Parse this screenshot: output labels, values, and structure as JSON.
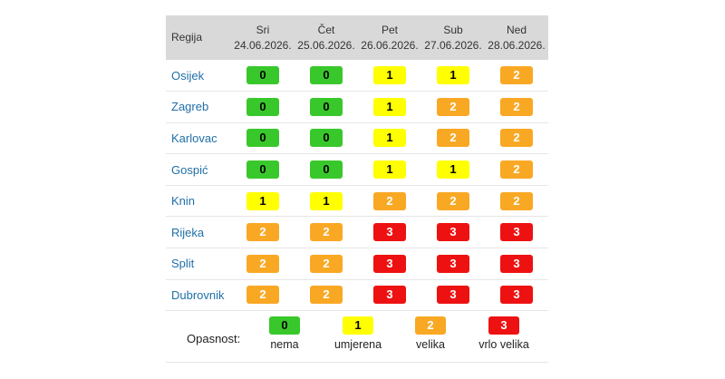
{
  "table": {
    "region_header": "Regija",
    "days": [
      {
        "name": "Sri",
        "date": "24.06.2026."
      },
      {
        "name": "Čet",
        "date": "25.06.2026."
      },
      {
        "name": "Pet",
        "date": "26.06.2026."
      },
      {
        "name": "Sub",
        "date": "27.06.2026."
      },
      {
        "name": "Ned",
        "date": "28.06.2026."
      }
    ],
    "rows": [
      {
        "region": "Osijek",
        "levels": [
          "0",
          "0",
          "1",
          "1",
          "2"
        ]
      },
      {
        "region": "Zagreb",
        "levels": [
          "0",
          "0",
          "1",
          "2",
          "2"
        ]
      },
      {
        "region": "Karlovac",
        "levels": [
          "0",
          "0",
          "1",
          "2",
          "2"
        ]
      },
      {
        "region": "Gospić",
        "levels": [
          "0",
          "0",
          "1",
          "1",
          "2"
        ]
      },
      {
        "region": "Knin",
        "levels": [
          "1",
          "1",
          "2",
          "2",
          "2"
        ]
      },
      {
        "region": "Rijeka",
        "levels": [
          "2",
          "2",
          "3",
          "3",
          "3"
        ]
      },
      {
        "region": "Split",
        "levels": [
          "2",
          "2",
          "3",
          "3",
          "3"
        ]
      },
      {
        "region": "Dubrovnik",
        "levels": [
          "2",
          "2",
          "3",
          "3",
          "3"
        ]
      }
    ]
  },
  "legend": {
    "label": "Opasnost:",
    "items": [
      {
        "level": "0",
        "text": "nema"
      },
      {
        "level": "1",
        "text": "umjerena"
      },
      {
        "level": "2",
        "text": "velika"
      },
      {
        "level": "3",
        "text": "vrlo velika"
      }
    ]
  },
  "colors": {
    "level_0": "#39c82b",
    "level_1": "#ffff00",
    "level_2": "#f9a824",
    "level_3": "#ee1111",
    "region_link": "#1f6fa8",
    "header_bg": "#d9d9d9"
  }
}
